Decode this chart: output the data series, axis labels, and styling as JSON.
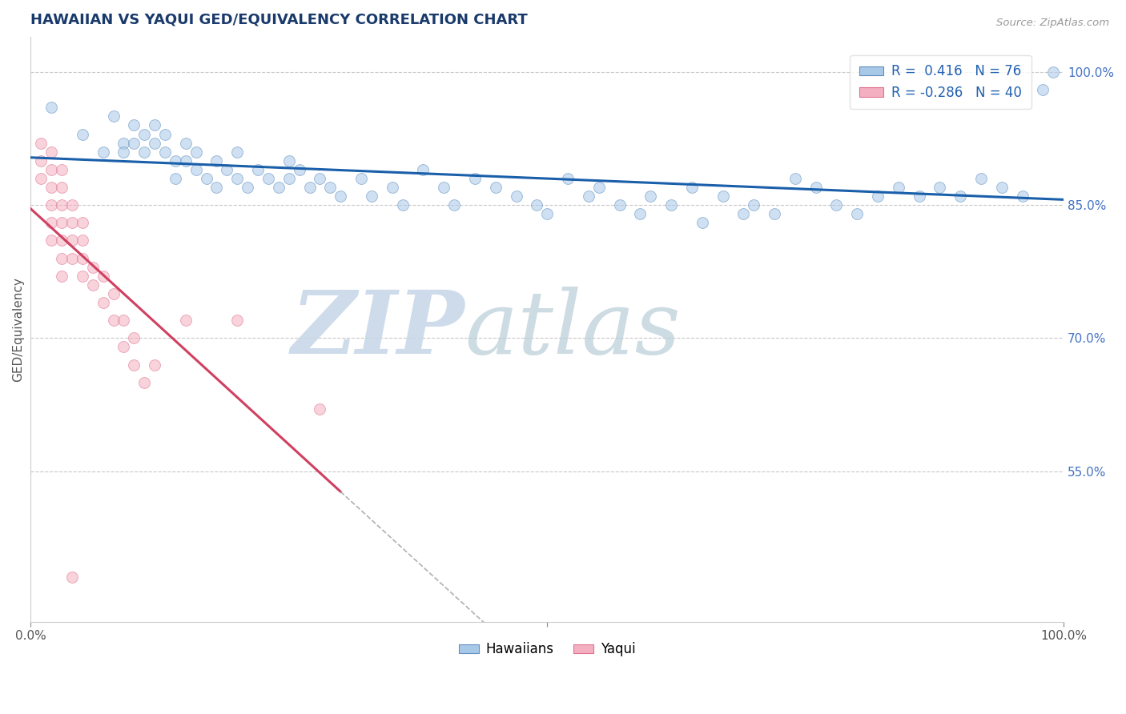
{
  "title": "HAWAIIAN VS YAQUI GED/EQUIVALENCY CORRELATION CHART",
  "title_color": "#1a3a6b",
  "source_text": "Source: ZipAtlas.com",
  "ylabel": "GED/Equivalency",
  "xmin": 0.0,
  "xmax": 1.0,
  "ymin": 0.38,
  "ymax": 1.04,
  "ytick_positions": [
    0.55,
    0.7,
    0.85,
    1.0
  ],
  "ytick_labels": [
    "55.0%",
    "70.0%",
    "85.0%",
    "100.0%"
  ],
  "xtick_positions": [
    0.0,
    0.5,
    1.0
  ],
  "xtick_labels": [
    "0.0%",
    "",
    "100.0%"
  ],
  "hawaiian_color": "#a8c8e8",
  "yaqui_color": "#f4b0c0",
  "hawaiian_edge": "#6090c0",
  "yaqui_edge": "#e07090",
  "trendline_hawaiian_color": "#1a5faa",
  "trendline_yaqui_color": "#d04060",
  "r_hawaiian": 0.416,
  "n_hawaiian": 76,
  "r_yaqui": -0.286,
  "n_yaqui": 40,
  "background_color": "#ffffff",
  "hawaiian_points": [
    [
      0.02,
      0.96
    ],
    [
      0.05,
      0.93
    ],
    [
      0.07,
      0.91
    ],
    [
      0.08,
      0.95
    ],
    [
      0.09,
      0.92
    ],
    [
      0.09,
      0.91
    ],
    [
      0.1,
      0.94
    ],
    [
      0.1,
      0.92
    ],
    [
      0.11,
      0.93
    ],
    [
      0.11,
      0.91
    ],
    [
      0.12,
      0.94
    ],
    [
      0.12,
      0.92
    ],
    [
      0.13,
      0.93
    ],
    [
      0.13,
      0.91
    ],
    [
      0.14,
      0.9
    ],
    [
      0.14,
      0.88
    ],
    [
      0.15,
      0.92
    ],
    [
      0.15,
      0.9
    ],
    [
      0.16,
      0.91
    ],
    [
      0.16,
      0.89
    ],
    [
      0.17,
      0.88
    ],
    [
      0.18,
      0.9
    ],
    [
      0.18,
      0.87
    ],
    [
      0.19,
      0.89
    ],
    [
      0.2,
      0.91
    ],
    [
      0.2,
      0.88
    ],
    [
      0.21,
      0.87
    ],
    [
      0.22,
      0.89
    ],
    [
      0.23,
      0.88
    ],
    [
      0.24,
      0.87
    ],
    [
      0.25,
      0.9
    ],
    [
      0.25,
      0.88
    ],
    [
      0.26,
      0.89
    ],
    [
      0.27,
      0.87
    ],
    [
      0.28,
      0.88
    ],
    [
      0.29,
      0.87
    ],
    [
      0.3,
      0.86
    ],
    [
      0.32,
      0.88
    ],
    [
      0.33,
      0.86
    ],
    [
      0.35,
      0.87
    ],
    [
      0.36,
      0.85
    ],
    [
      0.38,
      0.89
    ],
    [
      0.4,
      0.87
    ],
    [
      0.41,
      0.85
    ],
    [
      0.43,
      0.88
    ],
    [
      0.45,
      0.87
    ],
    [
      0.47,
      0.86
    ],
    [
      0.49,
      0.85
    ],
    [
      0.5,
      0.84
    ],
    [
      0.52,
      0.88
    ],
    [
      0.54,
      0.86
    ],
    [
      0.55,
      0.87
    ],
    [
      0.57,
      0.85
    ],
    [
      0.59,
      0.84
    ],
    [
      0.6,
      0.86
    ],
    [
      0.62,
      0.85
    ],
    [
      0.64,
      0.87
    ],
    [
      0.65,
      0.83
    ],
    [
      0.67,
      0.86
    ],
    [
      0.69,
      0.84
    ],
    [
      0.7,
      0.85
    ],
    [
      0.72,
      0.84
    ],
    [
      0.74,
      0.88
    ],
    [
      0.76,
      0.87
    ],
    [
      0.78,
      0.85
    ],
    [
      0.8,
      0.84
    ],
    [
      0.82,
      0.86
    ],
    [
      0.84,
      0.87
    ],
    [
      0.86,
      0.86
    ],
    [
      0.88,
      0.87
    ],
    [
      0.9,
      0.86
    ],
    [
      0.92,
      0.88
    ],
    [
      0.94,
      0.87
    ],
    [
      0.96,
      0.86
    ],
    [
      0.98,
      0.98
    ],
    [
      0.99,
      1.0
    ]
  ],
  "yaqui_points": [
    [
      0.01,
      0.92
    ],
    [
      0.01,
      0.9
    ],
    [
      0.01,
      0.88
    ],
    [
      0.02,
      0.91
    ],
    [
      0.02,
      0.89
    ],
    [
      0.02,
      0.87
    ],
    [
      0.02,
      0.85
    ],
    [
      0.02,
      0.83
    ],
    [
      0.02,
      0.81
    ],
    [
      0.03,
      0.89
    ],
    [
      0.03,
      0.87
    ],
    [
      0.03,
      0.85
    ],
    [
      0.03,
      0.83
    ],
    [
      0.03,
      0.81
    ],
    [
      0.03,
      0.79
    ],
    [
      0.03,
      0.77
    ],
    [
      0.04,
      0.85
    ],
    [
      0.04,
      0.83
    ],
    [
      0.04,
      0.81
    ],
    [
      0.04,
      0.79
    ],
    [
      0.05,
      0.83
    ],
    [
      0.05,
      0.81
    ],
    [
      0.05,
      0.79
    ],
    [
      0.05,
      0.77
    ],
    [
      0.06,
      0.78
    ],
    [
      0.06,
      0.76
    ],
    [
      0.07,
      0.77
    ],
    [
      0.07,
      0.74
    ],
    [
      0.08,
      0.75
    ],
    [
      0.08,
      0.72
    ],
    [
      0.09,
      0.72
    ],
    [
      0.09,
      0.69
    ],
    [
      0.1,
      0.7
    ],
    [
      0.1,
      0.67
    ],
    [
      0.11,
      0.65
    ],
    [
      0.12,
      0.67
    ],
    [
      0.15,
      0.72
    ],
    [
      0.2,
      0.72
    ],
    [
      0.28,
      0.62
    ],
    [
      0.04,
      0.43
    ]
  ],
  "marker_size": 100,
  "marker_alpha": 0.55,
  "trendline_lw": 2.2,
  "grid_color": "#c8c8c8",
  "grid_style": "--",
  "grid_lw": 0.8,
  "watermark_zip_color": "#c8d8e8",
  "watermark_atlas_color": "#b8ccd8",
  "watermark_fontsize": 80,
  "yaqui_trendline_solid_end": 0.3
}
